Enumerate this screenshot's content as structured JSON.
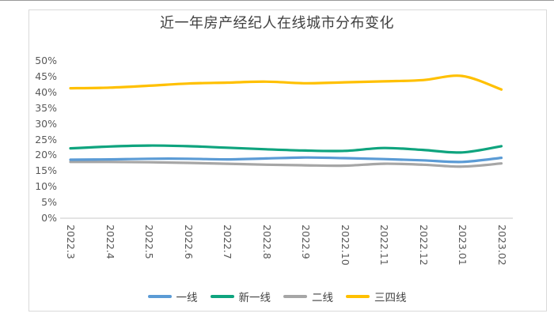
{
  "page": {
    "title": "近一年房产经纪人在线城市分布变化"
  },
  "chart_data": {
    "type": "line",
    "title": "近一年房产经纪人在线城市分布变化",
    "categories": [
      "2022.3",
      "2022.4",
      "2022.5",
      "2022.6",
      "2022.7",
      "2022.8",
      "2022.9",
      "2022.10",
      "2022.11",
      "2022.12",
      "2023.01",
      "2023.02"
    ],
    "series": [
      {
        "name": "一线",
        "color": "#5B9BD5",
        "values": [
          18.6,
          18.7,
          18.9,
          18.9,
          18.7,
          19.0,
          19.3,
          19.1,
          18.8,
          18.4,
          17.9,
          19.2
        ]
      },
      {
        "name": "新一线",
        "color": "#0FA47E",
        "values": [
          22.2,
          22.8,
          23.1,
          22.9,
          22.4,
          21.9,
          21.5,
          21.4,
          22.3,
          21.7,
          20.9,
          22.9
        ]
      },
      {
        "name": "二线",
        "color": "#A6A6A6",
        "values": [
          17.9,
          17.9,
          17.8,
          17.6,
          17.3,
          17.0,
          16.8,
          16.7,
          17.3,
          17.0,
          16.4,
          17.4
        ]
      },
      {
        "name": "三四线",
        "color": "#FFC000",
        "values": [
          41.3,
          41.5,
          42.1,
          42.8,
          43.1,
          43.4,
          42.9,
          43.2,
          43.5,
          43.9,
          45.2,
          40.9
        ]
      }
    ],
    "yticks": [
      "0%",
      "5%",
      "10%",
      "15%",
      "20%",
      "25%",
      "30%",
      "35%",
      "40%",
      "45%",
      "50%"
    ],
    "ylim": [
      0,
      50
    ],
    "ytick_step": 5,
    "xlabel": "",
    "ylabel": "",
    "grid": false,
    "legend_position": "bottom",
    "axis_color": "#c9c9c9",
    "text_color": "#595959"
  }
}
